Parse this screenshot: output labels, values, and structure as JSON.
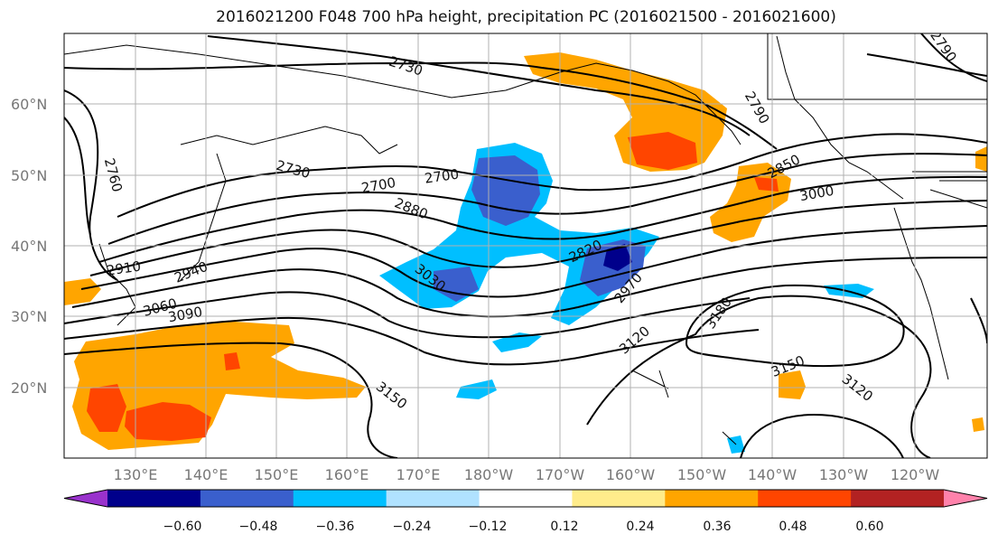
{
  "title": "2016021200 F048 700 hPa height, precipitation PC (2016021500 - 2016021600)",
  "map": {
    "lat_labels": [
      "60°N",
      "50°N",
      "40°N",
      "30°N",
      "20°N"
    ],
    "lon_labels": [
      "130°E",
      "140°E",
      "150°E",
      "160°E",
      "170°E",
      "180°W",
      "170°W",
      "160°W",
      "150°W",
      "140°W",
      "130°W",
      "120°W"
    ],
    "contour_labels": [
      "2730",
      "2700",
      "2790",
      "2760",
      "2730",
      "2700",
      "2880",
      "2820",
      "2850",
      "3000",
      "2910",
      "2940",
      "3030",
      "2970",
      "3060",
      "3090",
      "3180",
      "3120",
      "3150",
      "3150",
      "3120",
      "3150",
      "2790"
    ]
  },
  "colorbar": {
    "tick_labels": [
      "−0.60",
      "−0.48",
      "−0.36",
      "−0.24",
      "−0.12",
      "0.12",
      "0.24",
      "0.36",
      "0.48",
      "0.60"
    ],
    "colors": [
      "#9932cc",
      "#00008b",
      "#3a5fcd",
      "#00bfff",
      "#b0e2ff",
      "#ffffff",
      "#ffec8b",
      "#ffa500",
      "#ff4500",
      "#b22222",
      "#ff82ab"
    ]
  }
}
